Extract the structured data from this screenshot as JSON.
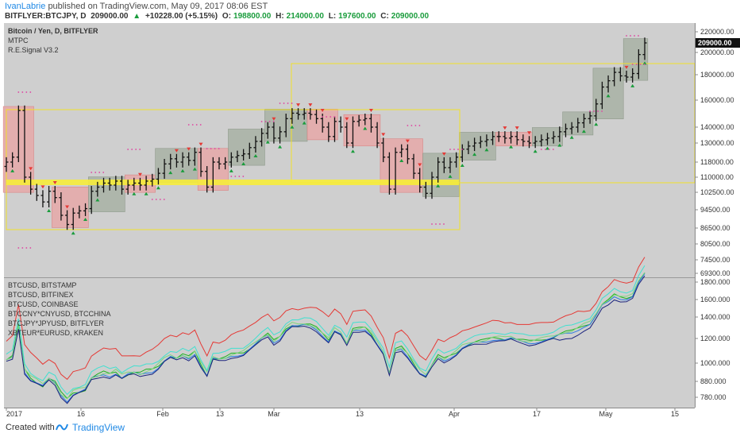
{
  "header": {
    "author": "IvanLabrie",
    "published_text": "published on TradingView.com, May 09, 2017 08:06 EST",
    "symbol": "BITFLYER:BTCJPY, D",
    "last": "209000.00",
    "change": "+10228.00 (+5.15%)",
    "open_label": "O:",
    "open": "198800.00",
    "high_label": "H:",
    "high": "214000.00",
    "low_label": "L:",
    "low": "197600.00",
    "close_label": "C:",
    "close": "209000.00"
  },
  "footer": {
    "created_label": "Created with",
    "brand": "TradingView"
  },
  "colors": {
    "up": "#1a9c3c",
    "down": "#e53935",
    "bg": "#cfcfcf",
    "accent": "#1e88e5"
  },
  "chart_data": [
    {
      "type": "ohlc",
      "title": "Bitcoin / Yen, D, BITFLYER",
      "indicators": [
        "MTPC",
        "R.E.Signal V3.2"
      ],
      "price_label": "209000.00",
      "y_ticks": [
        "220000.00",
        "200000.00",
        "180000.00",
        "160000.00",
        "140000.00",
        "130000.00",
        "118000.00",
        "110000.00",
        "102500.00",
        "94500.00",
        "86500.00",
        "80500.00",
        "74500.00",
        "69300.00"
      ],
      "x_ticks": [
        "2017",
        "16",
        "Feb",
        "13",
        "Mar",
        "13",
        "Apr",
        "17",
        "May",
        "15"
      ],
      "closes": [
        118000,
        121000,
        152000,
        110000,
        104000,
        101000,
        98000,
        103000,
        100000,
        92000,
        88000,
        93000,
        94000,
        95000,
        103000,
        105000,
        107000,
        106000,
        108000,
        104000,
        106000,
        107000,
        106000,
        108000,
        109000,
        112000,
        117000,
        120000,
        118000,
        121000,
        119000,
        124000,
        113000,
        105000,
        118000,
        117000,
        118000,
        121000,
        122000,
        123000,
        127000,
        131000,
        136000,
        140000,
        133000,
        137000,
        146000,
        150000,
        149000,
        150000,
        149000,
        146000,
        140000,
        134000,
        144000,
        140000,
        130000,
        144000,
        145000,
        146000,
        140000,
        130000,
        121000,
        104000,
        124000,
        126000,
        120000,
        112000,
        105000,
        102000,
        110000,
        118000,
        115000,
        118000,
        121000,
        126000,
        128000,
        130000,
        131000,
        132000,
        134000,
        134000,
        133000,
        134000,
        132000,
        131000,
        130000,
        131000,
        132000,
        133000,
        134000,
        137000,
        139000,
        140000,
        143000,
        146000,
        148000,
        157000,
        170000,
        175000,
        182000,
        179000,
        178000,
        181000,
        198000,
        209000
      ]
    },
    {
      "type": "line",
      "y_ticks": [
        "1800.000",
        "1600.000",
        "1400.000",
        "1200.000",
        "1000.000",
        "880.000",
        "780.000"
      ],
      "series": [
        {
          "name": "BTCUSD, BITSTAMP",
          "color": "#1db31d"
        },
        {
          "name": "BTCUSD, BITFINEX",
          "color": "#2a7ae2"
        },
        {
          "name": "BTCUSD, COINBASE",
          "color": "#7cd67c"
        },
        {
          "name": "BTCCNY*CNYUSD, BTCCHINA",
          "color": "#e53935"
        },
        {
          "name": "BTCJPY*JPYUSD, BITFLYER",
          "color": "#40e0d0"
        },
        {
          "name": "XBTEUR*EURUSD, KRAKEN",
          "color": "#1a237e"
        }
      ]
    }
  ]
}
